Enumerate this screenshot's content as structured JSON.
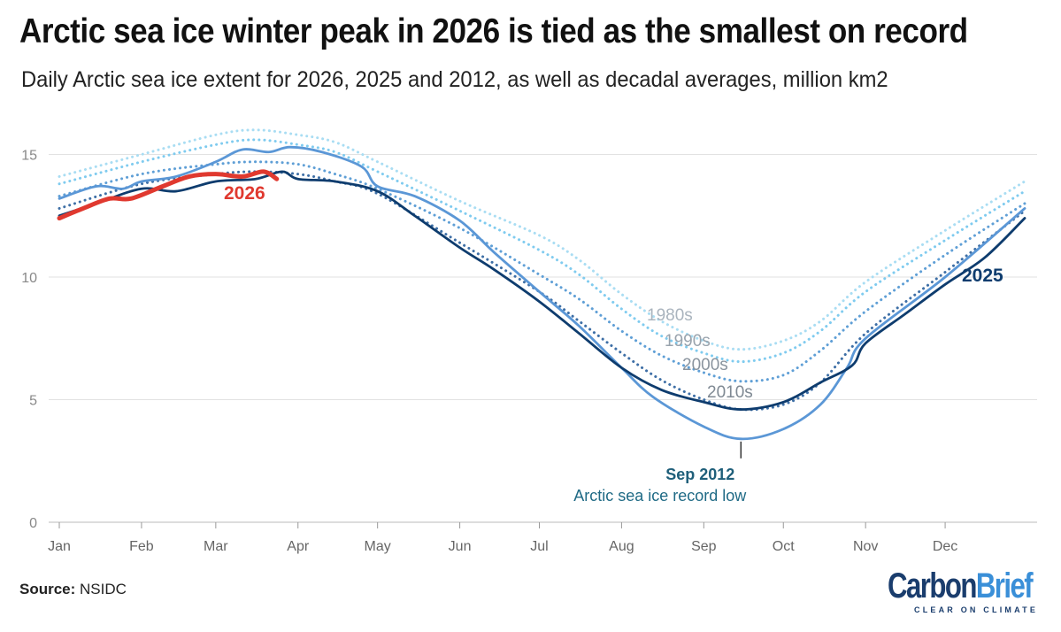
{
  "title": "Arctic sea ice winter peak in 2026 is tied as the smallest on record",
  "subtitle": "Daily Arctic sea ice extent for 2026, 2025 and 2012, as well as decadal averages, million km2",
  "source_label": "Source:",
  "source": "NSIDC",
  "logo": {
    "part1": "Carbon",
    "part2": "Brief",
    "tagline": "CLEAR ON CLIMATE"
  },
  "chart_data": {
    "type": "line",
    "title": "Arctic sea ice winter peak in 2026 is tied as the smallest on record",
    "ylabel": "million km2",
    "ylim": [
      0,
      16.5
    ],
    "yticks": [
      "0",
      "5",
      "10",
      "15"
    ],
    "grid": true,
    "xlabel": "",
    "x_unit": "day of year",
    "months": [
      "Jan",
      "Feb",
      "Mar",
      "Apr",
      "May",
      "Jun",
      "Jul",
      "Aug",
      "Sep",
      "Oct",
      "Nov",
      "Dec"
    ],
    "series": [
      {
        "name": "1980s",
        "style": "dotted",
        "color": "#a9ddf3",
        "label": "1980s",
        "points": [
          [
            1,
            14.1
          ],
          [
            32,
            15.0
          ],
          [
            60,
            15.8
          ],
          [
            75,
            16.0
          ],
          [
            91,
            15.8
          ],
          [
            105,
            15.5
          ],
          [
            121,
            14.7
          ],
          [
            152,
            13.1
          ],
          [
            182,
            11.7
          ],
          [
            197,
            10.7
          ],
          [
            213,
            9.3
          ],
          [
            228,
            8.2
          ],
          [
            244,
            7.4
          ],
          [
            258,
            7.05
          ],
          [
            274,
            7.4
          ],
          [
            288,
            8.2
          ],
          [
            305,
            9.8
          ],
          [
            335,
            11.9
          ],
          [
            365,
            13.9
          ]
        ]
      },
      {
        "name": "1990s",
        "style": "dotted",
        "color": "#7fcbef",
        "label": "1990s",
        "points": [
          [
            1,
            13.8
          ],
          [
            32,
            14.7
          ],
          [
            60,
            15.4
          ],
          [
            75,
            15.6
          ],
          [
            91,
            15.4
          ],
          [
            105,
            15.1
          ],
          [
            121,
            14.3
          ],
          [
            152,
            12.7
          ],
          [
            182,
            11.1
          ],
          [
            197,
            10.1
          ],
          [
            213,
            8.7
          ],
          [
            228,
            7.6
          ],
          [
            244,
            6.9
          ],
          [
            258,
            6.55
          ],
          [
            274,
            6.9
          ],
          [
            288,
            7.8
          ],
          [
            305,
            9.4
          ],
          [
            335,
            11.5
          ],
          [
            365,
            13.5
          ]
        ]
      },
      {
        "name": "2000s",
        "style": "dotted",
        "color": "#5f9fd6",
        "label": "2000s",
        "points": [
          [
            1,
            13.3
          ],
          [
            32,
            14.2
          ],
          [
            60,
            14.6
          ],
          [
            75,
            14.7
          ],
          [
            91,
            14.6
          ],
          [
            105,
            14.2
          ],
          [
            121,
            13.6
          ],
          [
            152,
            12.0
          ],
          [
            182,
            10.1
          ],
          [
            197,
            9.1
          ],
          [
            213,
            7.8
          ],
          [
            228,
            6.8
          ],
          [
            244,
            6.1
          ],
          [
            258,
            5.75
          ],
          [
            274,
            6.0
          ],
          [
            288,
            7.0
          ],
          [
            305,
            8.6
          ],
          [
            335,
            10.9
          ],
          [
            365,
            13.0
          ]
        ]
      },
      {
        "name": "2010s",
        "style": "dotted",
        "color": "#3e6fa6",
        "label": "2010s",
        "points": [
          [
            1,
            12.8
          ],
          [
            32,
            13.8
          ],
          [
            60,
            14.2
          ],
          [
            75,
            14.3
          ],
          [
            91,
            14.2
          ],
          [
            105,
            13.9
          ],
          [
            121,
            13.4
          ],
          [
            152,
            11.4
          ],
          [
            182,
            9.4
          ],
          [
            197,
            8.2
          ],
          [
            213,
            6.9
          ],
          [
            228,
            5.8
          ],
          [
            244,
            5.0
          ],
          [
            258,
            4.6
          ],
          [
            274,
            4.8
          ],
          [
            288,
            5.7
          ],
          [
            305,
            7.7
          ],
          [
            335,
            10.2
          ],
          [
            365,
            12.7
          ]
        ]
      },
      {
        "name": "2012",
        "style": "solid",
        "color": "#5b97d6",
        "points": [
          [
            1,
            13.2
          ],
          [
            15,
            13.7
          ],
          [
            25,
            13.6
          ],
          [
            32,
            13.9
          ],
          [
            45,
            14.1
          ],
          [
            60,
            14.7
          ],
          [
            70,
            15.2
          ],
          [
            80,
            15.1
          ],
          [
            88,
            15.3
          ],
          [
            100,
            15.1
          ],
          [
            115,
            14.5
          ],
          [
            121,
            13.7
          ],
          [
            135,
            13.3
          ],
          [
            152,
            12.3
          ],
          [
            165,
            11.0
          ],
          [
            182,
            9.4
          ],
          [
            197,
            8.0
          ],
          [
            213,
            6.3
          ],
          [
            225,
            5.1
          ],
          [
            244,
            3.9
          ],
          [
            258,
            3.4
          ],
          [
            274,
            3.8
          ],
          [
            288,
            4.8
          ],
          [
            298,
            6.3
          ],
          [
            305,
            7.5
          ],
          [
            335,
            10.0
          ],
          [
            365,
            12.8
          ]
        ]
      },
      {
        "name": "2025",
        "style": "solid",
        "color": "#0e3c6e",
        "label": "2025",
        "points": [
          [
            1,
            12.5
          ],
          [
            15,
            13.0
          ],
          [
            32,
            13.6
          ],
          [
            45,
            13.5
          ],
          [
            60,
            13.9
          ],
          [
            75,
            14.0
          ],
          [
            85,
            14.3
          ],
          [
            91,
            14.0
          ],
          [
            105,
            13.9
          ],
          [
            121,
            13.5
          ],
          [
            135,
            12.5
          ],
          [
            152,
            11.2
          ],
          [
            165,
            10.3
          ],
          [
            182,
            9.0
          ],
          [
            197,
            7.7
          ],
          [
            213,
            6.3
          ],
          [
            228,
            5.4
          ],
          [
            244,
            4.9
          ],
          [
            258,
            4.6
          ],
          [
            274,
            4.9
          ],
          [
            288,
            5.7
          ],
          [
            300,
            6.4
          ],
          [
            305,
            7.3
          ],
          [
            320,
            8.5
          ],
          [
            335,
            9.7
          ],
          [
            350,
            10.8
          ],
          [
            365,
            12.4
          ]
        ]
      },
      {
        "name": "2026",
        "style": "solid",
        "color": "#e0392f",
        "label": "2026",
        "points": [
          [
            1,
            12.4
          ],
          [
            10,
            12.8
          ],
          [
            20,
            13.2
          ],
          [
            28,
            13.2
          ],
          [
            40,
            13.7
          ],
          [
            50,
            14.1
          ],
          [
            60,
            14.2
          ],
          [
            70,
            14.1
          ],
          [
            78,
            14.3
          ],
          [
            83,
            14.0
          ]
        ]
      }
    ],
    "annotation": {
      "title": "Sep 2012",
      "text": "Arctic sea ice record low",
      "at": [
        258,
        3.4
      ]
    }
  }
}
